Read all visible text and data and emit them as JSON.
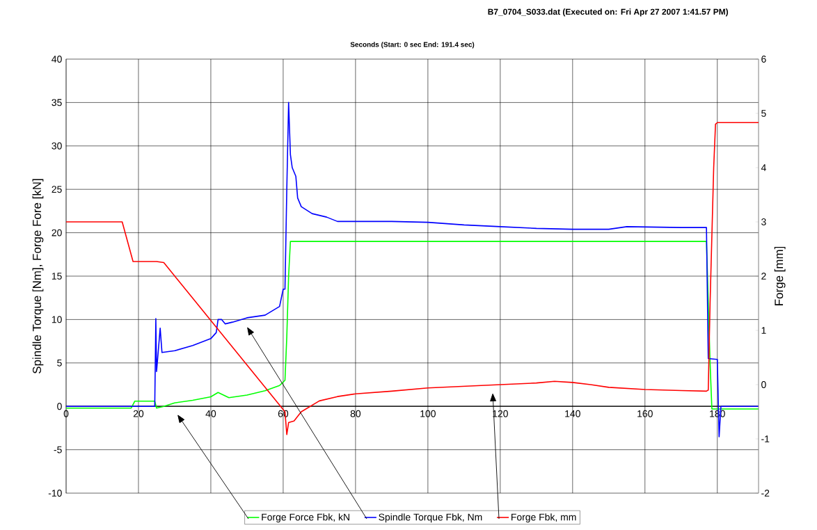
{
  "chart_data": {
    "type": "line",
    "title": "B7_0704_S033.dat     (Executed on: Fri Apr 27 2007  1:41.57 PM)",
    "xlabel": "Seconds (Start: 0 sec  End: 191.4 sec)",
    "ylabel": "Spindle Torque [Nm], Forge Fore [kN]",
    "y2label": "Forge [mm]",
    "xlim": [
      0,
      191.4
    ],
    "xticks": [
      0,
      20,
      40,
      60,
      80,
      100,
      120,
      140,
      160,
      180
    ],
    "ylim": [
      -10,
      40
    ],
    "yticks": [
      -10,
      -5,
      0,
      5,
      10,
      15,
      20,
      25,
      30,
      35,
      40
    ],
    "y2lim": [
      -2,
      6
    ],
    "y2ticks": [
      -2,
      -1,
      0,
      1,
      2,
      3,
      4,
      5,
      6
    ],
    "grid": true,
    "legend": "bottom",
    "series": [
      {
        "name": "Forge Force Fbk, kN",
        "color": "#00ff00",
        "x": [
          0,
          18,
          19,
          24.5,
          25,
          27,
          30,
          35,
          40,
          42,
          45,
          50,
          55,
          59,
          60.5,
          61,
          61.5,
          62,
          70,
          100,
          150,
          177,
          178,
          178.5,
          191.4
        ],
        "values": [
          -0.2,
          -0.2,
          0.6,
          0.6,
          -0.2,
          0,
          0.4,
          0.7,
          1.1,
          1.6,
          1.0,
          1.3,
          1.8,
          2.4,
          3.0,
          8,
          15,
          19,
          19,
          19,
          19,
          19,
          5,
          -0.3,
          -0.3
        ]
      },
      {
        "name": "Spindle Torque Fbk, Nm",
        "color": "#0000ff",
        "x": [
          0,
          24.5,
          24.8,
          25,
          25.5,
          26,
          26.5,
          30,
          35,
          40,
          41.5,
          42,
          43,
          44,
          46,
          50,
          55,
          57,
          59,
          60,
          60.5,
          61,
          61.5,
          62,
          62.5,
          63.5,
          64,
          65,
          68,
          72,
          75,
          80,
          90,
          100,
          110,
          120,
          130,
          140,
          150,
          155,
          170,
          177,
          177.5,
          180,
          180.5,
          181,
          191.4
        ],
        "values": [
          0,
          0,
          10.1,
          4,
          6.5,
          9,
          6.2,
          6.4,
          7,
          7.8,
          8.5,
          10,
          10,
          9.5,
          9.7,
          10.2,
          10.5,
          11,
          11.5,
          13.5,
          13.5,
          25,
          35,
          29,
          27.5,
          26.5,
          24,
          23,
          22.2,
          21.8,
          21.3,
          21.3,
          21.3,
          21.2,
          20.9,
          20.7,
          20.5,
          20.4,
          20.4,
          20.7,
          20.6,
          20.6,
          5.5,
          5.4,
          -3.5,
          0,
          0
        ]
      },
      {
        "name": "Forge Fbk, mm",
        "color": "#ff0000",
        "axis": "y2",
        "x": [
          0,
          15.5,
          18.5,
          25,
          27,
          60.5,
          61,
          61.5,
          63,
          65,
          70,
          75,
          80,
          90,
          100,
          110,
          120,
          130,
          135,
          140,
          145,
          150,
          160,
          170,
          177,
          177.5,
          178,
          179,
          179.5,
          180,
          191.4
        ],
        "values": [
          3.0,
          3.0,
          2.27,
          2.27,
          2.25,
          -0.5,
          -0.92,
          -0.7,
          -0.67,
          -0.5,
          -0.3,
          -0.22,
          -0.17,
          -0.12,
          -0.06,
          -0.03,
          0.0,
          0.03,
          0.06,
          0.04,
          0.0,
          -0.05,
          -0.09,
          -0.11,
          -0.12,
          -0.1,
          1.5,
          4.0,
          4.8,
          4.83,
          4.83
        ]
      }
    ]
  }
}
